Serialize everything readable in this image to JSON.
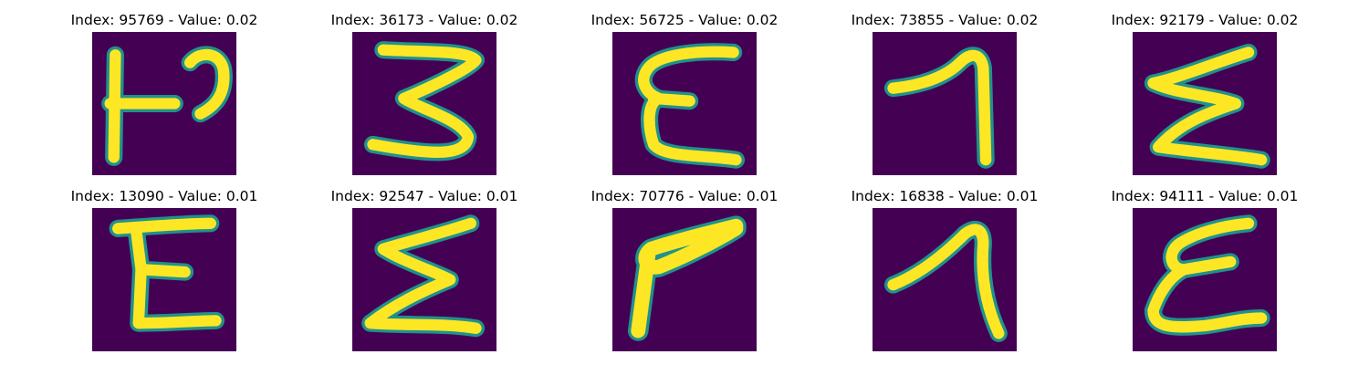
{
  "colors": {
    "background": "#440154",
    "stroke_core": "#fde725",
    "stroke_edge": "#21918c"
  },
  "panels": [
    {
      "title": "Index: 95769 - Value: 0.02"
    },
    {
      "title": "Index: 36173 - Value: 0.02"
    },
    {
      "title": "Index: 56725 - Value: 0.02"
    },
    {
      "title": "Index: 73855 - Value: 0.02"
    },
    {
      "title": "Index: 92179 - Value: 0.02"
    },
    {
      "title": "Index: 13090 - Value: 0.01"
    },
    {
      "title": "Index: 92547 - Value: 0.01"
    },
    {
      "title": "Index: 70776 - Value: 0.01"
    },
    {
      "title": "Index: 16838 - Value: 0.01"
    },
    {
      "title": "Index: 94111 - Value: 0.01"
    }
  ]
}
